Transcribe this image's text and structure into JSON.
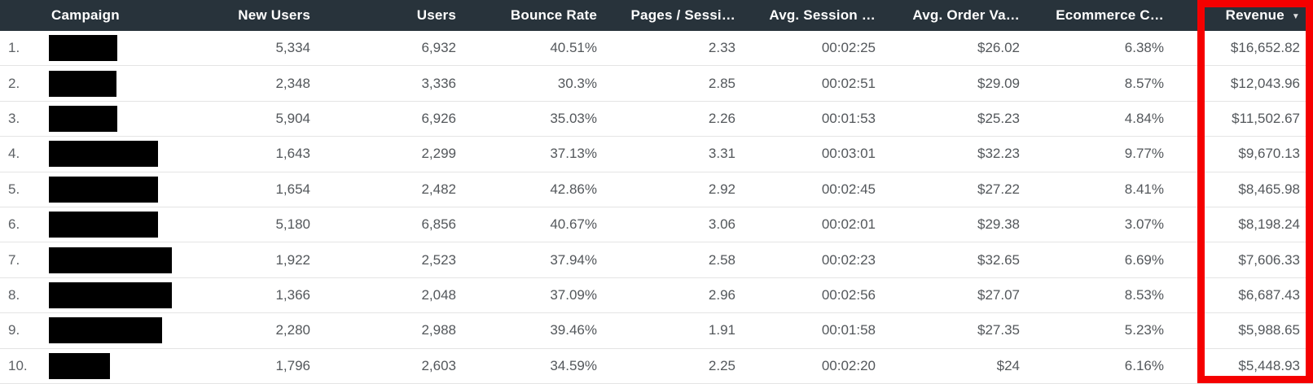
{
  "table": {
    "columns": [
      {
        "label": "Campaign",
        "align": "left"
      },
      {
        "label": "New Users",
        "align": "right"
      },
      {
        "label": "Users",
        "align": "right"
      },
      {
        "label": "Bounce Rate",
        "align": "right"
      },
      {
        "label": "Pages / Sessi…",
        "align": "right"
      },
      {
        "label": "Avg. Session …",
        "align": "right"
      },
      {
        "label": "Avg. Order Va…",
        "align": "right"
      },
      {
        "label": "Ecommerce C…",
        "align": "right"
      },
      {
        "label": "Revenue",
        "align": "right",
        "sorted": "descending"
      }
    ],
    "column_keys": [
      "new-users",
      "users",
      "bounce-rate",
      "pages-per-session",
      "avg-session-duration",
      "avg-order-value",
      "ecommerce-conversion-rate",
      "revenue"
    ],
    "rows": [
      {
        "index": "1.",
        "redacted_width": 84,
        "values": [
          "5,334",
          "6,932",
          "40.51%",
          "2.33",
          "00:02:25",
          "$26.02",
          "6.38%",
          "$16,652.82"
        ]
      },
      {
        "index": "2.",
        "redacted_width": 83,
        "values": [
          "2,348",
          "3,336",
          "30.3%",
          "2.85",
          "00:02:51",
          "$29.09",
          "8.57%",
          "$12,043.96"
        ]
      },
      {
        "index": "3.",
        "redacted_width": 84,
        "values": [
          "5,904",
          "6,926",
          "35.03%",
          "2.26",
          "00:01:53",
          "$25.23",
          "4.84%",
          "$11,502.67"
        ]
      },
      {
        "index": "4.",
        "redacted_width": 134,
        "values": [
          "1,643",
          "2,299",
          "37.13%",
          "3.31",
          "00:03:01",
          "$32.23",
          "9.77%",
          "$9,670.13"
        ]
      },
      {
        "index": "5.",
        "redacted_width": 134,
        "values": [
          "1,654",
          "2,482",
          "42.86%",
          "2.92",
          "00:02:45",
          "$27.22",
          "8.41%",
          "$8,465.98"
        ]
      },
      {
        "index": "6.",
        "redacted_width": 134,
        "values": [
          "5,180",
          "6,856",
          "40.67%",
          "3.06",
          "00:02:01",
          "$29.38",
          "3.07%",
          "$8,198.24"
        ]
      },
      {
        "index": "7.",
        "redacted_width": 169,
        "values": [
          "1,922",
          "2,523",
          "37.94%",
          "2.58",
          "00:02:23",
          "$32.65",
          "6.69%",
          "$7,606.33"
        ]
      },
      {
        "index": "8.",
        "redacted_width": 169,
        "values": [
          "1,366",
          "2,048",
          "37.09%",
          "2.96",
          "00:02:56",
          "$27.07",
          "8.53%",
          "$6,687.43"
        ]
      },
      {
        "index": "9.",
        "redacted_width": 139,
        "values": [
          "2,280",
          "2,988",
          "39.46%",
          "1.91",
          "00:01:58",
          "$27.35",
          "5.23%",
          "$5,988.65"
        ]
      },
      {
        "index": "10.",
        "redacted_width": 75,
        "values": [
          "1,796",
          "2,603",
          "34.59%",
          "2.25",
          "00:02:20",
          "$24",
          "6.16%",
          "$5,448.93"
        ]
      }
    ]
  },
  "sort_icon": "▼",
  "colors": {
    "header_bg": "#28333b",
    "header_text": "#ffffff",
    "body_text": "#53575b",
    "row_divider": "#e4e4e4",
    "highlight_red": "#f50000",
    "redaction": "#000000"
  }
}
